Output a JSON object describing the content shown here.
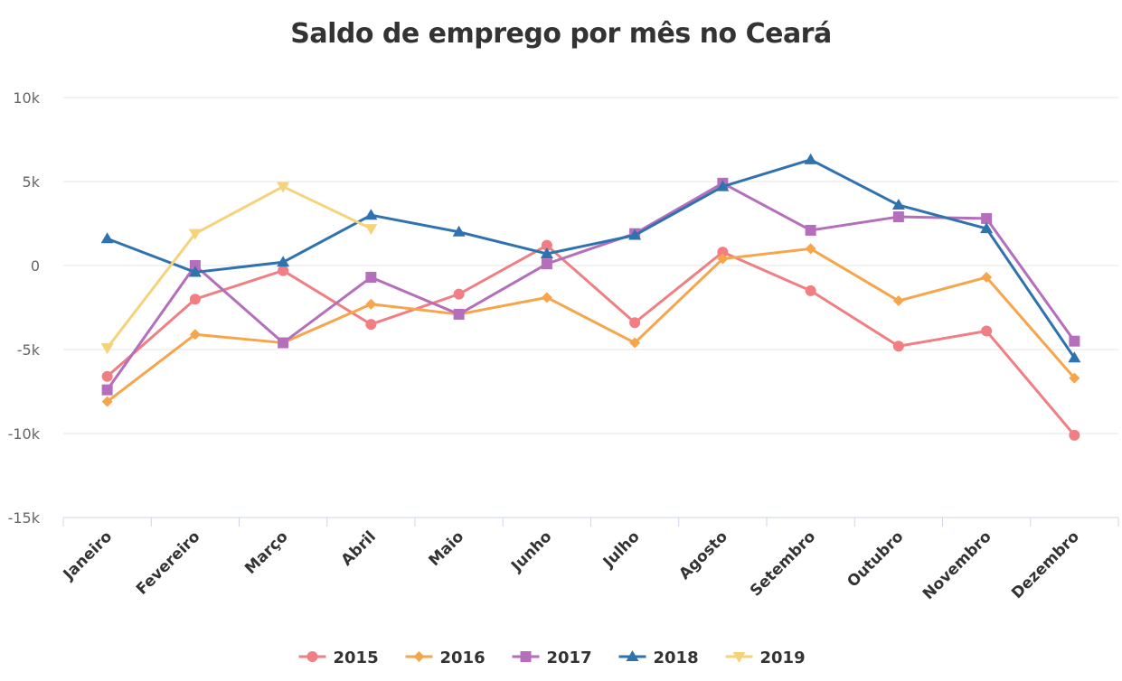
{
  "chart_data": {
    "type": "line",
    "title": "Saldo de emprego por mês no Ceará",
    "xlabel": "",
    "ylabel": "",
    "categories": [
      "Janeiro",
      "Fevereiro",
      "Março",
      "Abril",
      "Maio",
      "Junho",
      "Julho",
      "Agosto",
      "Setembro",
      "Outubro",
      "Novembro",
      "Dezembro"
    ],
    "ylim": [
      -15000,
      10000
    ],
    "yticks": [
      10000,
      5000,
      0,
      -5000,
      -10000,
      -15000
    ],
    "ytick_labels": [
      "10k",
      "5k",
      "0",
      "-5k",
      "-10k",
      "-15k"
    ],
    "grid": true,
    "legend_position": "bottom",
    "series": [
      {
        "name": "2015",
        "color": "#f07e83",
        "marker": "circle",
        "values": [
          -6600,
          -2000,
          -300,
          -3500,
          -1700,
          1200,
          -3400,
          800,
          -1500,
          -4800,
          -3900,
          -10100
        ]
      },
      {
        "name": "2016",
        "color": "#f7a54a",
        "marker": "diamond",
        "values": [
          -8100,
          -4100,
          -4600,
          -2300,
          -2900,
          -1900,
          -4600,
          400,
          1000,
          -2100,
          -700,
          -6700
        ]
      },
      {
        "name": "2017",
        "color": "#b56ebb",
        "marker": "square",
        "values": [
          -7400,
          0,
          -4600,
          -700,
          -2900,
          100,
          1900,
          4900,
          2100,
          2900,
          2800,
          -4500
        ]
      },
      {
        "name": "2018",
        "color": "#2f72b0",
        "marker": "triangle",
        "values": [
          1600,
          -400,
          200,
          3000,
          2000,
          700,
          1800,
          4700,
          6300,
          3600,
          2200,
          -5500
        ]
      },
      {
        "name": "2019",
        "color": "#f4d37b",
        "marker": "triangle-down",
        "values": [
          -4900,
          1900,
          4700,
          2200,
          null,
          null,
          null,
          null,
          null,
          null,
          null,
          null
        ]
      }
    ]
  }
}
